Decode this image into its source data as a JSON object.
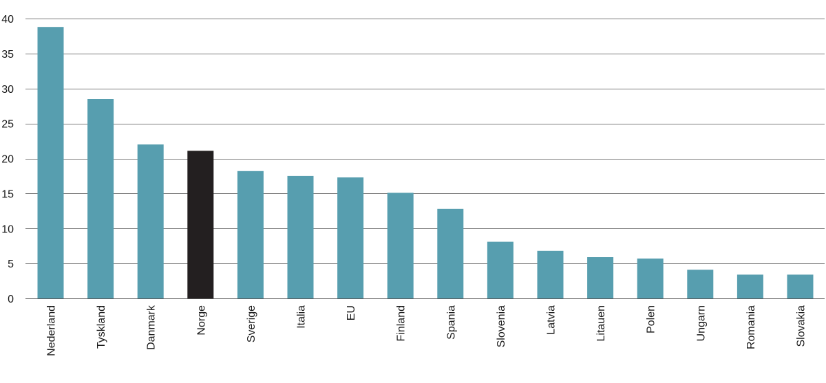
{
  "chart_data": {
    "type": "bar",
    "title": "",
    "xlabel": "",
    "ylabel": "",
    "ylim": [
      0,
      40
    ],
    "yticks": [
      0,
      5,
      10,
      15,
      20,
      25,
      30,
      35,
      40
    ],
    "grid": true,
    "categories": [
      "Nederland",
      "Tyskland",
      "Danmark",
      "Norge",
      "Sverige",
      "Italia",
      "EU",
      "Finland",
      "Spania",
      "Slovenia",
      "Latvia",
      "Litauen",
      "Polen",
      "Ungarn",
      "Romania",
      "Slovakia"
    ],
    "values": [
      38.8,
      28.5,
      22.0,
      21.1,
      18.2,
      17.5,
      17.3,
      15.1,
      12.8,
      8.1,
      6.8,
      5.9,
      5.7,
      4.1,
      3.4,
      3.4
    ],
    "highlight_category": "Norge",
    "colors": {
      "bar": "#579eaf",
      "highlight": "#231f20",
      "grid": "#7a7a7a"
    }
  }
}
